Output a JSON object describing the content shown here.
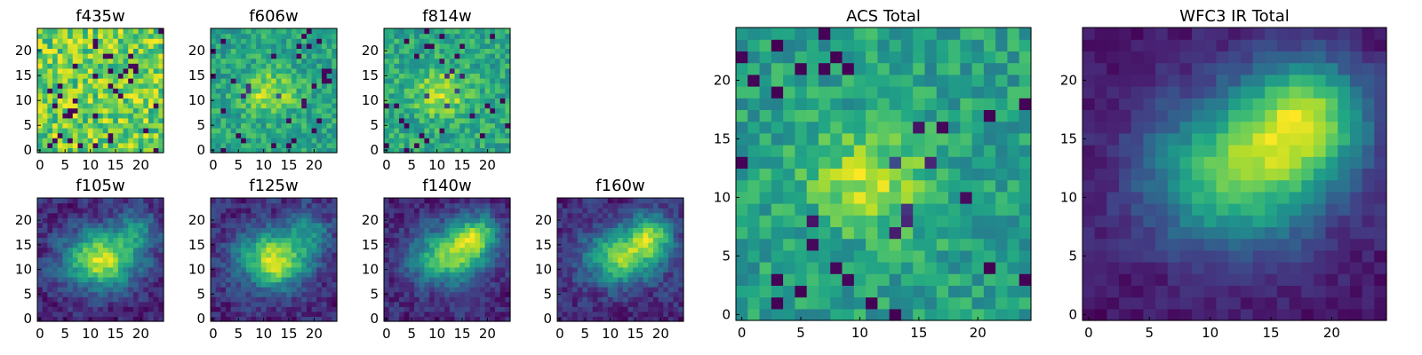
{
  "figure": {
    "colormap": "viridis"
  },
  "chart_data": [
    {
      "type": "heatmap",
      "title": "f435w",
      "pattern": "noise",
      "seed": 11,
      "xticks": [
        "0",
        "5",
        "10",
        "15",
        "20"
      ],
      "yticks": [
        "0",
        "5",
        "10",
        "15",
        "20"
      ]
    },
    {
      "type": "heatmap",
      "title": "f606w",
      "pattern": "acs",
      "seed": 12,
      "xticks": [
        "0",
        "5",
        "10",
        "15",
        "20"
      ],
      "yticks": [
        "0",
        "5",
        "10",
        "15",
        "20"
      ]
    },
    {
      "type": "heatmap",
      "title": "f814w",
      "pattern": "acs",
      "seed": 13,
      "xticks": [
        "0",
        "5",
        "10",
        "15",
        "20"
      ],
      "yticks": [
        "0",
        "5",
        "10",
        "15",
        "20"
      ]
    },
    {
      "type": "heatmap",
      "title": "f105w",
      "pattern": "ir",
      "seed": 14,
      "xticks": [
        "0",
        "5",
        "10",
        "15",
        "20"
      ],
      "yticks": [
        "0",
        "5",
        "10",
        "15",
        "20"
      ]
    },
    {
      "type": "heatmap",
      "title": "f125w",
      "pattern": "ir",
      "seed": 15,
      "xticks": [
        "0",
        "5",
        "10",
        "15",
        "20"
      ],
      "yticks": [
        "0",
        "5",
        "10",
        "15",
        "20"
      ]
    },
    {
      "type": "heatmap",
      "title": "f140w",
      "pattern": "ir2",
      "seed": 16,
      "xticks": [
        "0",
        "5",
        "10",
        "15",
        "20"
      ],
      "yticks": [
        "0",
        "5",
        "10",
        "15",
        "20"
      ]
    },
    {
      "type": "heatmap",
      "title": "f160w",
      "pattern": "ir2",
      "seed": 17,
      "xticks": [
        "0",
        "5",
        "10",
        "15",
        "20"
      ],
      "yticks": [
        "0",
        "5",
        "10",
        "15",
        "20"
      ]
    },
    {
      "type": "heatmap",
      "title": "ACS Total",
      "pattern": "acs",
      "seed": 18,
      "xticks": [
        "0",
        "5",
        "10",
        "15",
        "20"
      ],
      "yticks": [
        "0",
        "5",
        "10",
        "15",
        "20"
      ]
    },
    {
      "type": "heatmap",
      "title": "WFC3 IR Total",
      "pattern": "irtotal",
      "seed": 19,
      "xticks": [
        "0",
        "5",
        "10",
        "15",
        "20"
      ],
      "yticks": [
        "0",
        "5",
        "10",
        "15",
        "20"
      ]
    }
  ]
}
